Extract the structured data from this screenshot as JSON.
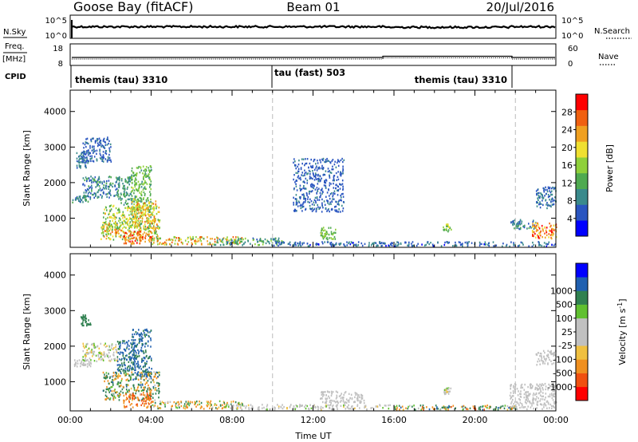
{
  "header": {
    "station": "Goose Bay (fitACF)",
    "beam": "Beam 01",
    "date": "20/Jul/2016"
  },
  "summary_panels": {
    "nsky": {
      "left_label": "N.Sky",
      "right_label": "N.Search",
      "left_ticks": [
        "10^5",
        "10^0"
      ],
      "right_ticks": [
        "10^5",
        "10^0"
      ],
      "left_key": "solid",
      "right_key": "dotted"
    },
    "freq": {
      "left_label": "Freq.",
      "left_unit": "[MHz]",
      "right_label": "Nave",
      "left_ticks": [
        "18",
        "8"
      ],
      "right_ticks": [
        "60",
        "0"
      ],
      "left_key": "solid",
      "right_key": "dotted"
    },
    "cpid": {
      "label": "CPID",
      "segments": [
        {
          "label": "themis (tau) 3310",
          "start_hour": 0,
          "end_hour": 10
        },
        {
          "label": "tau (fast) 503",
          "start_hour": 10,
          "end_hour": 22
        },
        {
          "label": "themis (tau) 3310",
          "start_hour": 22,
          "end_hour": 24
        }
      ]
    }
  },
  "chart_data": [
    {
      "type": "heatmap",
      "quantity": "power",
      "ylabel": "Slant Range [km]",
      "xlabel": "",
      "xlim": [
        0,
        24
      ],
      "ylim": [
        180,
        4600
      ],
      "yticks": [
        "1000",
        "2000",
        "3000",
        "4000"
      ],
      "ytick_values": [
        1000,
        2000,
        3000,
        4000
      ],
      "colorbar_label": "Power [dB]",
      "colorbar_ticks": [
        "4",
        "8",
        "12",
        "16",
        "20",
        "24",
        "28"
      ],
      "colorbar_tick_values": [
        4,
        8,
        12,
        16,
        20,
        24,
        28
      ],
      "colorbar_range": [
        0,
        32
      ],
      "colorbar_colors": [
        "#0000ff",
        "#2a55c0",
        "#3a8a8c",
        "#4faa50",
        "#8fd03a",
        "#f0e030",
        "#f0a020",
        "#f06010",
        "#ff0000"
      ],
      "mode_change_hours": [
        10,
        22
      ],
      "scatter_regions": [
        {
          "t": [
            0.05,
            1.0
          ],
          "r": [
            1450,
            1650
          ],
          "v": [
            6,
            12
          ]
        },
        {
          "t": [
            0.6,
            2.4
          ],
          "r": [
            1600,
            2200
          ],
          "v": [
            5,
            12
          ]
        },
        {
          "t": [
            0.6,
            2.0
          ],
          "r": [
            2600,
            3300
          ],
          "v": [
            4,
            8
          ]
        },
        {
          "t": [
            0.3,
            0.9
          ],
          "r": [
            2400,
            2900
          ],
          "v": [
            5,
            10
          ]
        },
        {
          "t": [
            2.3,
            3.2
          ],
          "r": [
            1400,
            2200
          ],
          "v": [
            8,
            14
          ]
        },
        {
          "t": [
            3.0,
            4.0
          ],
          "r": [
            1200,
            2500
          ],
          "v": [
            10,
            18
          ]
        },
        {
          "t": [
            1.6,
            4.4
          ],
          "r": [
            700,
            1400
          ],
          "v": [
            10,
            22
          ]
        },
        {
          "t": [
            3.0,
            4.2
          ],
          "r": [
            900,
            1500
          ],
          "v": [
            16,
            26
          ]
        },
        {
          "t": [
            1.5,
            4.3
          ],
          "r": [
            400,
            900
          ],
          "v": [
            12,
            26
          ]
        },
        {
          "t": [
            2.6,
            4.0
          ],
          "r": [
            300,
            650
          ],
          "v": [
            22,
            30
          ]
        },
        {
          "t": [
            4.0,
            8.5
          ],
          "r": [
            280,
            500
          ],
          "v": [
            12,
            28
          ]
        },
        {
          "t": [
            7.0,
            10.5
          ],
          "r": [
            260,
            460
          ],
          "v": [
            6,
            16
          ]
        },
        {
          "t": [
            10.0,
            24.0
          ],
          "r": [
            230,
            360
          ],
          "v": [
            3,
            10
          ]
        },
        {
          "t": [
            12.3,
            13.1
          ],
          "r": [
            420,
            760
          ],
          "v": [
            12,
            18
          ]
        },
        {
          "t": [
            11.0,
            13.5
          ],
          "r": [
            1200,
            2700
          ],
          "v": [
            4,
            8
          ]
        },
        {
          "t": [
            18.4,
            18.8
          ],
          "r": [
            650,
            850
          ],
          "v": [
            12,
            20
          ]
        },
        {
          "t": [
            21.7,
            23.0
          ],
          "r": [
            720,
            980
          ],
          "v": [
            5,
            12
          ]
        },
        {
          "t": [
            22.8,
            24.0
          ],
          "r": [
            450,
            900
          ],
          "v": [
            18,
            30
          ]
        },
        {
          "t": [
            23.0,
            24.0
          ],
          "r": [
            1300,
            1900
          ],
          "v": [
            4,
            10
          ]
        }
      ]
    },
    {
      "type": "heatmap",
      "quantity": "velocity",
      "ylabel": "Slant Range [km]",
      "xlabel": "Time UT",
      "xlim": [
        0,
        24
      ],
      "xticks": [
        "00:00",
        "04:00",
        "08:00",
        "12:00",
        "16:00",
        "20:00",
        "00:00"
      ],
      "xtick_values": [
        0,
        4,
        8,
        12,
        16,
        20,
        24
      ],
      "ylim": [
        180,
        4600
      ],
      "yticks": [
        "1000",
        "2000",
        "3000",
        "4000"
      ],
      "ytick_values": [
        1000,
        2000,
        3000,
        4000
      ],
      "colorbar_label": "Velocity [m s",
      "colorbar_label_sup": "-1",
      "colorbar_label_end": "]",
      "colorbar_ticks": [
        "-1000",
        "-500",
        "-100",
        "-25",
        "25",
        "100",
        "500",
        "1000"
      ],
      "colorbar_colors": [
        "#ff0000",
        "#f05010",
        "#f09020",
        "#f0c040",
        "#c0c0c0",
        "#c0c0c0",
        "#60c030",
        "#308050",
        "#2060b0",
        "#0000ff"
      ],
      "mode_change_hours": [
        10,
        22
      ],
      "scatter_regions": [
        {
          "t": [
            0.05,
            1.0
          ],
          "r": [
            1450,
            1650
          ],
          "v": [
            0,
            0
          ]
        },
        {
          "t": [
            0.6,
            2.4
          ],
          "r": [
            1600,
            2100
          ],
          "v": [
            -50,
            50
          ]
        },
        {
          "t": [
            0.5,
            1.0
          ],
          "r": [
            2600,
            2900
          ],
          "v": [
            100,
            300
          ]
        },
        {
          "t": [
            2.3,
            3.2
          ],
          "r": [
            1300,
            2200
          ],
          "v": [
            200,
            900
          ]
        },
        {
          "t": [
            3.0,
            4.0
          ],
          "r": [
            1100,
            2500
          ],
          "v": [
            300,
            1000
          ]
        },
        {
          "t": [
            1.6,
            4.4
          ],
          "r": [
            500,
            1300
          ],
          "v": [
            -400,
            600
          ]
        },
        {
          "t": [
            2.6,
            4.0
          ],
          "r": [
            300,
            700
          ],
          "v": [
            -900,
            -100
          ]
        },
        {
          "t": [
            4.0,
            8.5
          ],
          "r": [
            260,
            480
          ],
          "v": [
            -300,
            200
          ]
        },
        {
          "t": [
            8.0,
            16.0
          ],
          "r": [
            240,
            380
          ],
          "v": [
            -30,
            30
          ]
        },
        {
          "t": [
            12.3,
            14.5
          ],
          "r": [
            420,
            760
          ],
          "v": [
            -20,
            20
          ]
        },
        {
          "t": [
            16.0,
            22.0
          ],
          "r": [
            230,
            360
          ],
          "v": [
            -600,
            600
          ]
        },
        {
          "t": [
            18.4,
            18.8
          ],
          "r": [
            650,
            850
          ],
          "v": [
            -30,
            30
          ]
        },
        {
          "t": [
            21.7,
            24.0
          ],
          "r": [
            250,
            980
          ],
          "v": [
            -20,
            20
          ]
        },
        {
          "t": [
            23.0,
            24.0
          ],
          "r": [
            1500,
            1900
          ],
          "v": [
            -20,
            20
          ]
        }
      ]
    }
  ]
}
